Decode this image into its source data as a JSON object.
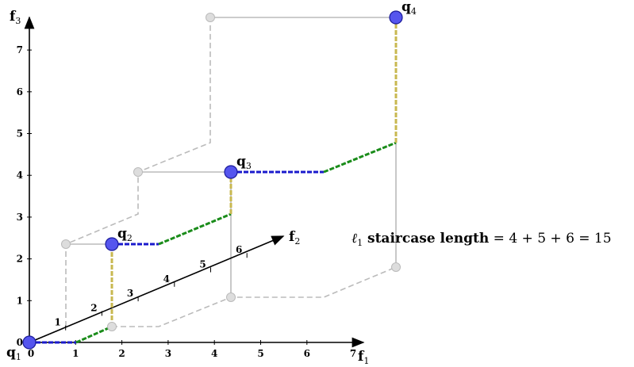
{
  "axes": {
    "f1": {
      "label": "f",
      "sub": "1",
      "ticks": [
        "0",
        "1",
        "2",
        "3",
        "4",
        "5",
        "6",
        "7"
      ]
    },
    "f2": {
      "label": "f",
      "sub": "2",
      "ticks": [
        "1",
        "2",
        "3",
        "4",
        "5",
        "6"
      ]
    },
    "f3": {
      "label": "f",
      "sub": "3",
      "ticks": [
        "0",
        "1",
        "2",
        "3",
        "4",
        "5",
        "6",
        "7"
      ]
    }
  },
  "points": [
    {
      "label": "q",
      "sub": "1"
    },
    {
      "label": "q",
      "sub": "2"
    },
    {
      "label": "q",
      "sub": "3"
    },
    {
      "label": "q",
      "sub": "4"
    }
  ],
  "annotation": {
    "ell": "ℓ",
    "ell_sub": "1",
    "bold": " staircase length",
    "formula": " = 4 + 5 + 6 = 15"
  },
  "colors": {
    "f1_step": "#1a1acc",
    "f2_step": "#1a8c1a",
    "f3_step": "#c8b850",
    "point": "#5555ee",
    "ghost": "#bbbbbb"
  }
}
